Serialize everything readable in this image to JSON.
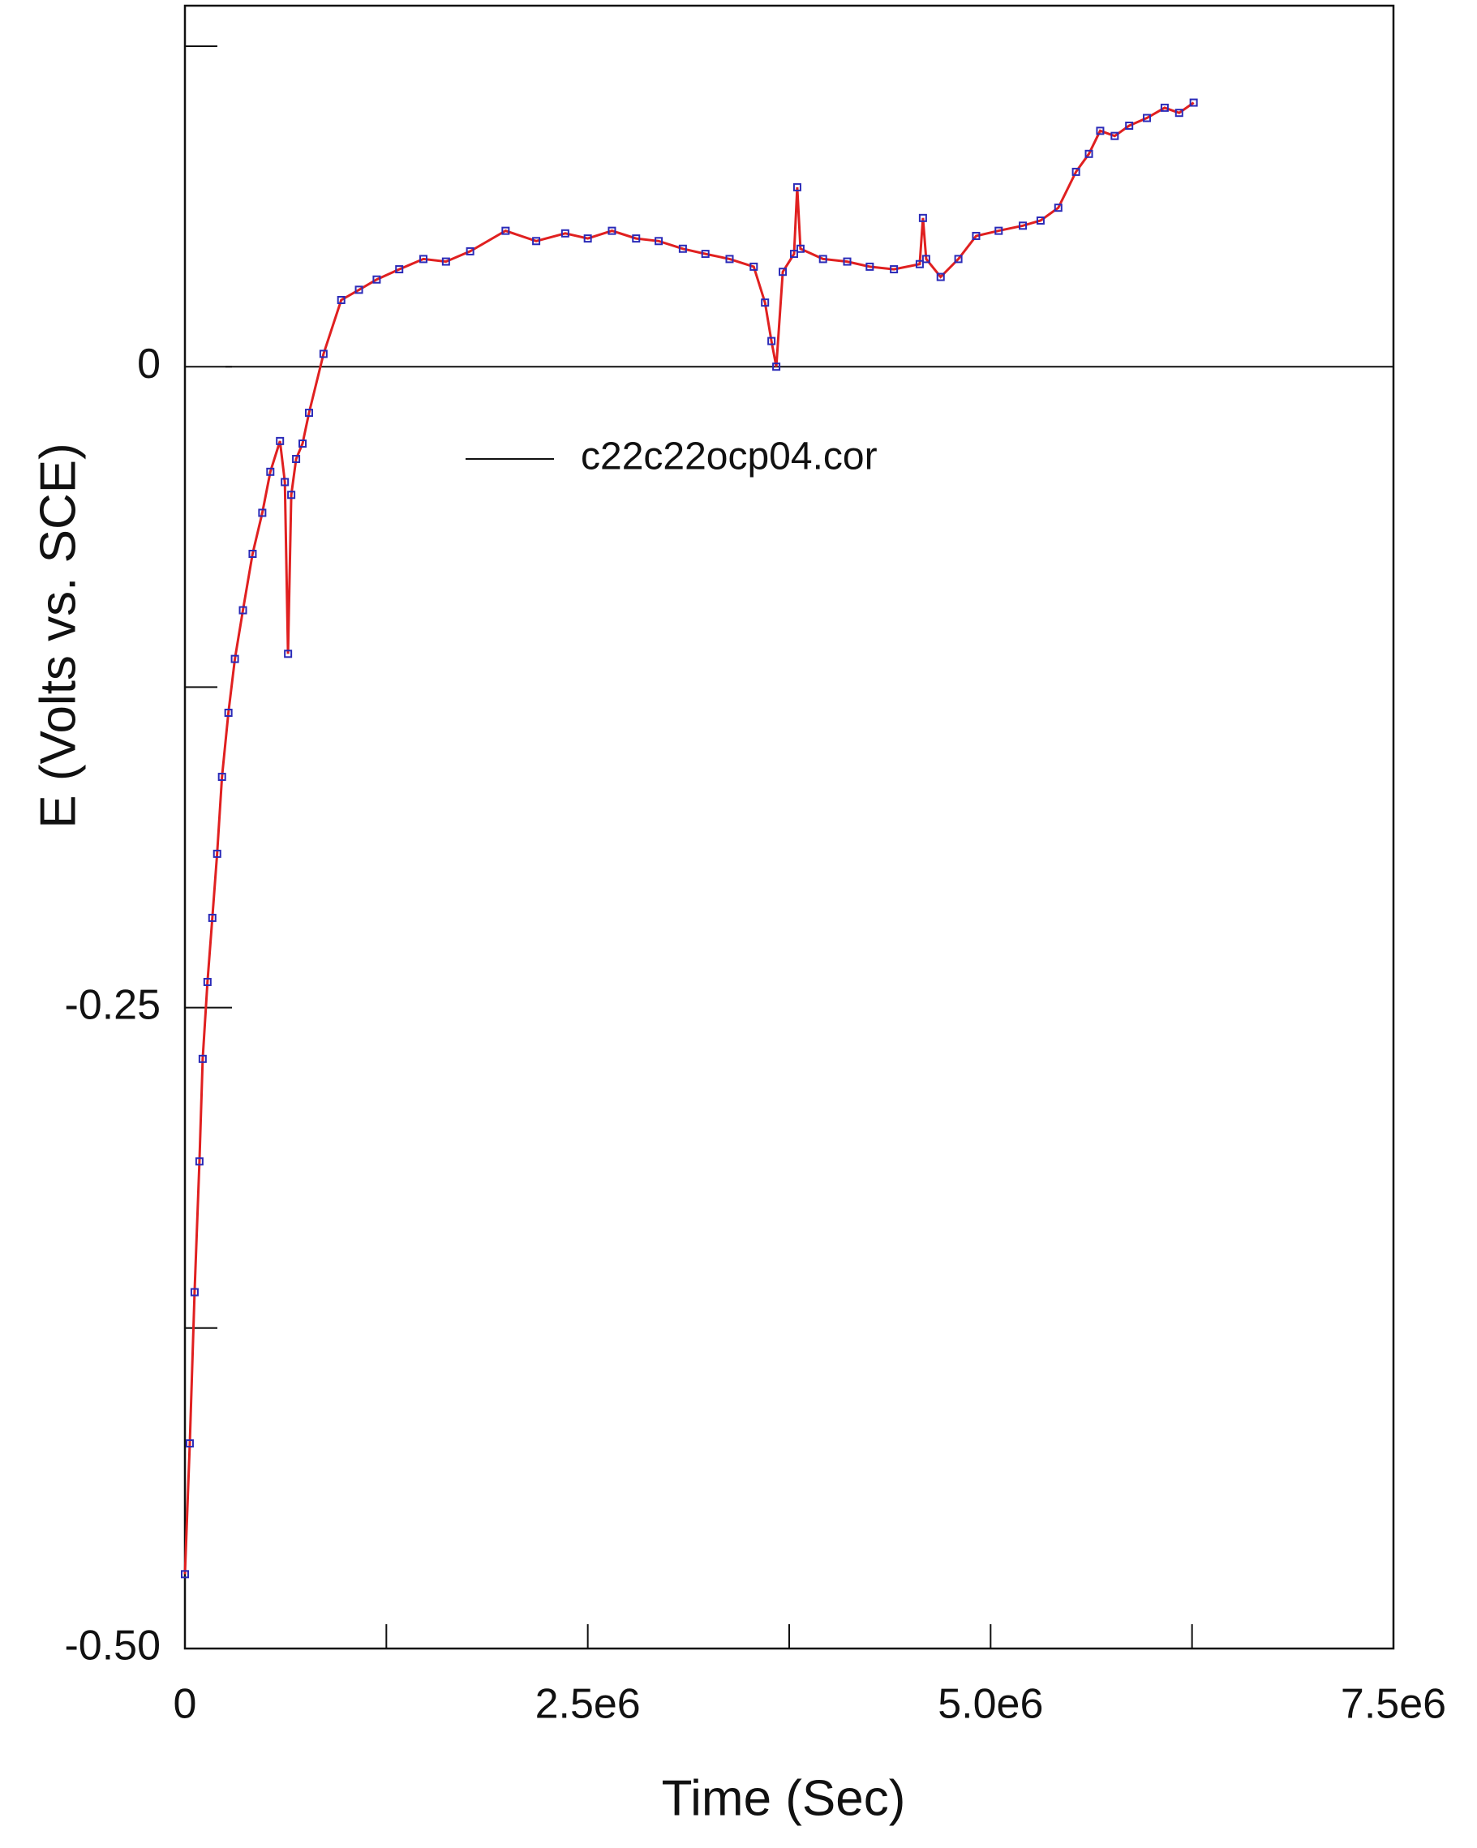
{
  "chart_data": {
    "type": "line",
    "xlabel": "Time (Sec)",
    "ylabel": "E (Volts vs. SCE)",
    "x": [
      0,
      30000,
      60000,
      90000,
      110000,
      140000,
      170000,
      200000,
      230000,
      270000,
      310000,
      360000,
      420000,
      480000,
      530000,
      590000,
      620000,
      640000,
      660000,
      690000,
      730000,
      770000,
      860000,
      970000,
      1080000,
      1190000,
      1330000,
      1480000,
      1620000,
      1770000,
      1990000,
      2180000,
      2360000,
      2500000,
      2650000,
      2800000,
      2940000,
      3090000,
      3230000,
      3380000,
      3530000,
      3600000,
      3640000,
      3670000,
      3710000,
      3780000,
      3800000,
      3820000,
      3960000,
      4110000,
      4250000,
      4400000,
      4560000,
      4580000,
      4600000,
      4690000,
      4800000,
      4910000,
      5050000,
      5200000,
      5310000,
      5420000,
      5530000,
      5610000,
      5680000,
      5770000,
      5860000,
      5970000,
      6080000,
      6170000,
      6260000
    ],
    "series": [
      {
        "name": "c22c22ocp04.cor",
        "color": "#e02020",
        "marker_color": "#2a2ab8",
        "values": [
          -0.471,
          -0.42,
          -0.361,
          -0.31,
          -0.27,
          -0.24,
          -0.215,
          -0.19,
          -0.16,
          -0.135,
          -0.114,
          -0.095,
          -0.073,
          -0.057,
          -0.041,
          -0.029,
          -0.045,
          -0.112,
          -0.05,
          -0.036,
          -0.03,
          -0.018,
          0.005,
          0.026,
          0.03,
          0.034,
          0.038,
          0.042,
          0.041,
          0.045,
          0.053,
          0.049,
          0.052,
          0.05,
          0.053,
          0.05,
          0.049,
          0.046,
          0.044,
          0.042,
          0.039,
          0.025,
          0.01,
          0.0,
          0.037,
          0.044,
          0.07,
          0.046,
          0.042,
          0.041,
          0.039,
          0.038,
          0.04,
          0.058,
          0.042,
          0.035,
          0.042,
          0.051,
          0.053,
          0.055,
          0.057,
          0.062,
          0.076,
          0.083,
          0.092,
          0.09,
          0.094,
          0.097,
          0.101,
          0.099,
          0.103
        ]
      }
    ],
    "xlim": [
      0,
      7500000
    ],
    "ylim": [
      -0.5,
      0.125
    ],
    "xticks": [
      0,
      {
        "value": 2500000,
        "label": "2.5e6"
      },
      {
        "value": 5000000,
        "label": "5.0e6"
      },
      {
        "value": 7500000,
        "label": "7.5e6"
      }
    ],
    "yticks": [
      {
        "value": -0.5,
        "label": "-0.50"
      },
      -0.25,
      0
    ],
    "x_minor_ticks": [
      1250000,
      3750000,
      6250000
    ],
    "y_minor_ticks": [
      -0.375,
      -0.125,
      0.125
    ],
    "hline": 0,
    "legend": "upper-left",
    "grid": false
  }
}
